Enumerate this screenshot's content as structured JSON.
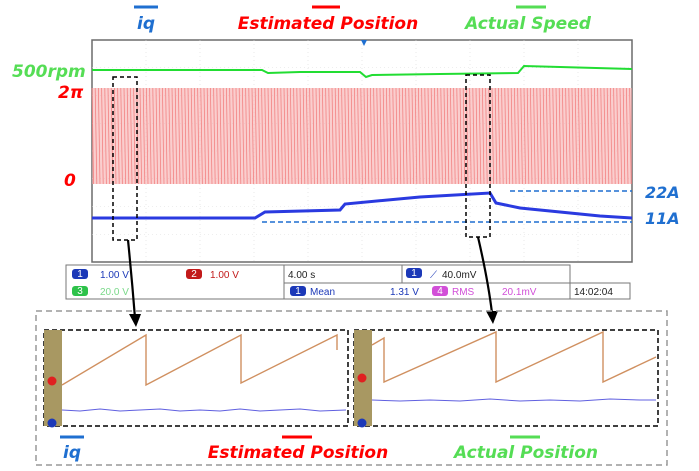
{
  "header_labels": {
    "iq": "iq",
    "estimated_position": "Estimated Position",
    "actual_speed": "Actual Speed"
  },
  "left_labels": {
    "speed_level": "500rpm",
    "two_pi": "2π",
    "zero": "0"
  },
  "right_labels": {
    "i22": "22A",
    "i11": "11A"
  },
  "status_bar": {
    "ch1_num": "1",
    "ch1_scale": "1.00 V",
    "ch2_num": "2",
    "ch2_scale": "1.00 V",
    "ch3_num": "3",
    "ch3_scale": "20.0 V",
    "timebase": "4.00 s",
    "trig_num": "1",
    "trig_level": "40.0mV",
    "meas1_num": "1",
    "meas1_name": "Mean",
    "meas1_value": "1.31 V",
    "meas2_num": "4",
    "meas2_name": "RMS",
    "meas2_value": "20.1mV",
    "clock": "14:02:04"
  },
  "zoom_labels": {
    "iq": "iq",
    "estimated_position": "Estimated Position",
    "actual_position": "Actual Position"
  },
  "colors": {
    "speed": "#22dd33",
    "position": "#f07070",
    "iq": "#2233dd",
    "label_red": "#ff0000",
    "label_blue": "#1f6fd0",
    "label_green": "#55dd55"
  },
  "chart_data": {
    "type": "line",
    "series": [
      {
        "name": "iq",
        "description_points": [
          [
            0,
            11
          ],
          [
            0.37,
            11
          ],
          [
            0.42,
            13
          ],
          [
            0.6,
            13.5
          ],
          [
            0.62,
            17
          ],
          [
            0.8,
            20
          ],
          [
            0.86,
            22
          ],
          [
            0.9,
            17
          ],
          [
            1,
            11
          ]
        ]
      },
      {
        "name": "Estimated Position",
        "range": [
          0,
          6.283
        ]
      },
      {
        "name": "Actual Speed",
        "level": 500
      }
    ],
    "ylabels": [
      "500rpm",
      "2π",
      "0",
      "22A",
      "11A"
    ]
  }
}
